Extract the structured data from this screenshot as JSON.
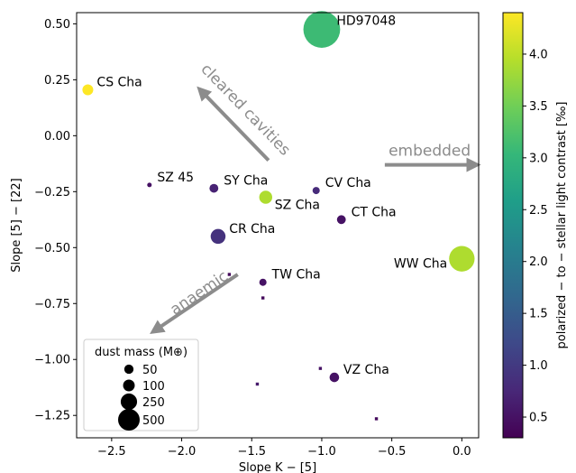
{
  "chart_data": {
    "type": "scatter",
    "title": "",
    "xlabel": "Slope K − [5]",
    "ylabel": "Slope [5] − [22]",
    "xlim": [
      -2.75,
      0.12
    ],
    "ylim": [
      -1.35,
      0.55
    ],
    "x_ticks": [
      -2.5,
      -2.0,
      -1.5,
      -1.0,
      -0.5,
      0.0
    ],
    "x_tick_labels": [
      "−2.5",
      "−2.0",
      "−1.5",
      "−1.0",
      "−0.5",
      "0.0"
    ],
    "y_ticks": [
      0.5,
      0.25,
      0.0,
      -0.25,
      -0.5,
      -0.75,
      -1.0,
      -1.25
    ],
    "y_tick_labels": [
      "0.50",
      "0.25",
      "0.00",
      "−0.25",
      "−0.50",
      "−0.75",
      "−1.00",
      "−1.25"
    ],
    "grid": false,
    "points": [
      {
        "label": "HD97048",
        "x": -1.0,
        "y": 0.475,
        "dust_mass": 520,
        "contrast": 3.1
      },
      {
        "label": "CS Cha",
        "x": -2.67,
        "y": 0.205,
        "dust_mass": 45,
        "contrast": 4.4
      },
      {
        "label": "SZ 45",
        "x": -2.23,
        "y": -0.22,
        "dust_mass": 8,
        "contrast": 0.5
      },
      {
        "label": "SY Cha",
        "x": -1.77,
        "y": -0.235,
        "dust_mass": 30,
        "contrast": 0.7
      },
      {
        "label": "SZ Cha",
        "x": -1.4,
        "y": -0.275,
        "dust_mass": 65,
        "contrast": 3.9
      },
      {
        "label": "CV Cha",
        "x": -1.04,
        "y": -0.245,
        "dust_mass": 20,
        "contrast": 0.8
      },
      {
        "label": "CT Cha",
        "x": -0.86,
        "y": -0.375,
        "dust_mass": 30,
        "contrast": 0.5
      },
      {
        "label": "CR Cha",
        "x": -1.74,
        "y": -0.45,
        "dust_mass": 85,
        "contrast": 0.9
      },
      {
        "label": "WW Cha",
        "x": 0.0,
        "y": -0.55,
        "dust_mass": 250,
        "contrast": 3.9
      },
      {
        "label": "TW Cha",
        "x": -1.42,
        "y": -0.655,
        "dust_mass": 20,
        "contrast": 0.5
      },
      {
        "label": "VZ Cha",
        "x": -0.91,
        "y": -1.08,
        "dust_mass": 35,
        "contrast": 0.5
      },
      {
        "label": "",
        "x": -1.66,
        "y": -0.62,
        "dust_mass": 5,
        "contrast": 0.4,
        "marker": "square"
      },
      {
        "label": "",
        "x": -1.42,
        "y": -0.725,
        "dust_mass": 5,
        "contrast": 0.4,
        "marker": "square"
      },
      {
        "label": "",
        "x": -1.01,
        "y": -1.04,
        "dust_mass": 7,
        "contrast": 0.5,
        "marker": "square"
      },
      {
        "label": "",
        "x": -1.46,
        "y": -1.11,
        "dust_mass": 8,
        "contrast": 0.6,
        "marker": "square"
      },
      {
        "label": "",
        "x": -0.61,
        "y": -1.265,
        "dust_mass": 4,
        "contrast": 0.4,
        "marker": "square"
      }
    ],
    "arrows": [
      {
        "label": "cleared cavities",
        "from": [
          -1.38,
          -0.11
        ],
        "to": [
          -1.86,
          0.2
        ]
      },
      {
        "label": "embedded",
        "from": [
          -0.55,
          -0.13
        ],
        "to": [
          0.09,
          -0.13
        ]
      },
      {
        "label": "anaemic",
        "from": [
          -1.6,
          -0.62
        ],
        "to": [
          -2.19,
          -0.87
        ]
      }
    ],
    "size_legend": {
      "title": "dust mass (M⊕)",
      "entries": [
        {
          "label": "50",
          "value": 50
        },
        {
          "label": "100",
          "value": 100
        },
        {
          "label": "250",
          "value": 250
        },
        {
          "label": "500",
          "value": 500
        }
      ],
      "placement": "lower-left"
    },
    "colorbar": {
      "label": "polarized − to − stellar light contrast [‰]",
      "min": 0.3,
      "max": 4.4,
      "ticks": [
        0.5,
        1.0,
        1.5,
        2.0,
        2.5,
        3.0,
        3.5,
        4.0
      ],
      "tick_labels": [
        "0.5",
        "1.0",
        "1.5",
        "2.0",
        "2.5",
        "3.0",
        "3.5",
        "4.0"
      ],
      "colormap": "viridis",
      "colormap_stops": [
        "#440154",
        "#482878",
        "#3e4989",
        "#31688e",
        "#26828e",
        "#1f9e89",
        "#35b779",
        "#6ece58",
        "#b5de2b",
        "#fde725"
      ]
    }
  }
}
